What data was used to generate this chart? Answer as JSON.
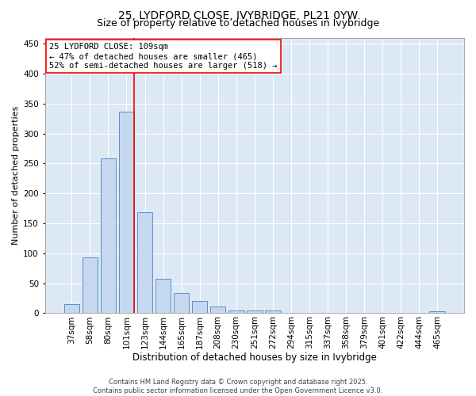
{
  "title": "25, LYDFORD CLOSE, IVYBRIDGE, PL21 0YW",
  "subtitle": "Size of property relative to detached houses in Ivybridge",
  "xlabel": "Distribution of detached houses by size in Ivybridge",
  "ylabel": "Number of detached properties",
  "categories": [
    "37sqm",
    "58sqm",
    "80sqm",
    "101sqm",
    "123sqm",
    "144sqm",
    "165sqm",
    "187sqm",
    "208sqm",
    "230sqm",
    "251sqm",
    "272sqm",
    "294sqm",
    "315sqm",
    "337sqm",
    "358sqm",
    "379sqm",
    "401sqm",
    "422sqm",
    "444sqm",
    "465sqm"
  ],
  "values": [
    15,
    93,
    258,
    336,
    168,
    57,
    33,
    20,
    11,
    5,
    4,
    4,
    0,
    0,
    0,
    1,
    0,
    0,
    0,
    0,
    3
  ],
  "bar_color": "#c5d8ef",
  "bar_edge_color": "#5b8fc9",
  "vline_x_index": 3,
  "vline_color": "red",
  "annotation_text": "25 LYDFORD CLOSE: 109sqm\n← 47% of detached houses are smaller (465)\n52% of semi-detached houses are larger (518) →",
  "annotation_box_color": "white",
  "annotation_box_edge": "red",
  "ylim": [
    0,
    460
  ],
  "yticks": [
    0,
    50,
    100,
    150,
    200,
    250,
    300,
    350,
    400,
    450
  ],
  "footer": "Contains HM Land Registry data © Crown copyright and database right 2025.\nContains public sector information licensed under the Open Government Licence v3.0.",
  "bg_color": "#dce9f5",
  "fig_bg_color": "#ffffff",
  "title_fontsize": 10,
  "subtitle_fontsize": 9,
  "xlabel_fontsize": 8.5,
  "ylabel_fontsize": 8,
  "tick_fontsize": 7.5,
  "footer_fontsize": 6,
  "annot_fontsize": 7.5
}
